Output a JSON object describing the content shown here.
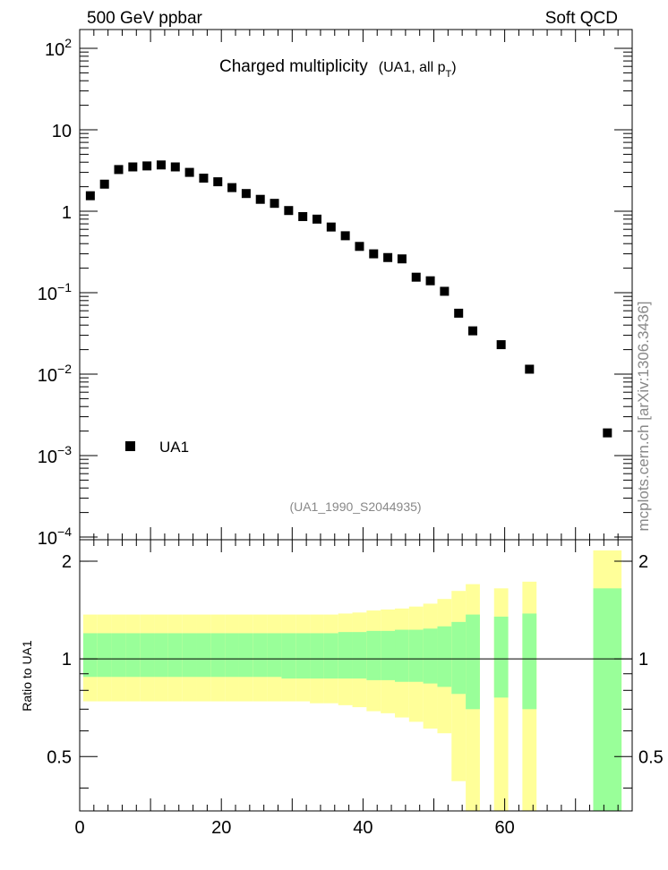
{
  "header": {
    "left": "500 GeV ppbar",
    "right": "Soft QCD"
  },
  "side_label": "mcplots.cern.ch [arXiv:1306.3436]",
  "chart_data": [
    {
      "type": "scatter",
      "title": "Charged multiplicity",
      "subtitle_prefix": "(UA1, all p",
      "subtitle_sub": "T",
      "subtitle_suffix": ")",
      "yscale": "log",
      "xlim": [
        0,
        78
      ],
      "ylim": [
        0.0001,
        200
      ],
      "y_ticks": [
        {
          "v": 100,
          "base": "10",
          "exp": "2"
        },
        {
          "v": 10,
          "base": "10",
          "exp": ""
        },
        {
          "v": 1,
          "base": "1",
          "exp": ""
        },
        {
          "v": 0.1,
          "base": "10",
          "exp": "−1"
        },
        {
          "v": 0.01,
          "base": "10",
          "exp": "−2"
        },
        {
          "v": 0.001,
          "base": "10",
          "exp": "−3"
        },
        {
          "v": 0.0001,
          "base": "10",
          "exp": "−4"
        }
      ],
      "legend": {
        "label": "UA1",
        "position": "lower-left"
      },
      "reference_text": "(UA1_1990_S2044935)",
      "series": [
        {
          "name": "UA1",
          "points": [
            [
              1.5,
              1.55
            ],
            [
              3.5,
              2.15
            ],
            [
              5.5,
              3.25
            ],
            [
              7.5,
              3.5
            ],
            [
              9.5,
              3.6
            ],
            [
              11.5,
              3.7
            ],
            [
              13.5,
              3.5
            ],
            [
              15.5,
              3.0
            ],
            [
              17.5,
              2.55
            ],
            [
              19.5,
              2.3
            ],
            [
              21.5,
              1.95
            ],
            [
              23.5,
              1.65
            ],
            [
              25.5,
              1.4
            ],
            [
              27.5,
              1.25
            ],
            [
              29.5,
              1.02
            ],
            [
              31.5,
              0.86
            ],
            [
              33.5,
              0.8
            ],
            [
              35.5,
              0.64
            ],
            [
              37.5,
              0.5
            ],
            [
              39.5,
              0.37
            ],
            [
              41.5,
              0.3
            ],
            [
              43.5,
              0.27
            ],
            [
              45.5,
              0.26
            ],
            [
              47.5,
              0.155
            ],
            [
              49.5,
              0.14
            ],
            [
              51.5,
              0.104
            ],
            [
              53.5,
              0.056
            ],
            [
              55.5,
              0.034
            ],
            [
              59.5,
              0.023
            ],
            [
              63.5,
              0.0115
            ],
            [
              74.5,
              0.0019
            ]
          ]
        }
      ]
    },
    {
      "type": "area",
      "ylabel": "Ratio to UA1",
      "xlim": [
        0,
        78
      ],
      "ylim": [
        0.34,
        2.33
      ],
      "x_ticks": [
        "0",
        "20",
        "40",
        "60"
      ],
      "y_ticks": [
        "0.5",
        "1",
        "2"
      ],
      "reference_line": 1,
      "colors": {
        "outer": "#ffff99",
        "inner": "#99ff99"
      },
      "bands": [
        {
          "x0": 0.5,
          "x1": 2.5,
          "lo_outer": 0.74,
          "lo_inner": 0.88,
          "hi_inner": 1.2,
          "hi_outer": 1.37
        },
        {
          "x0": 2.5,
          "x1": 4.5,
          "lo_outer": 0.74,
          "lo_inner": 0.88,
          "hi_inner": 1.2,
          "hi_outer": 1.37
        },
        {
          "x0": 4.5,
          "x1": 6.5,
          "lo_outer": 0.74,
          "lo_inner": 0.88,
          "hi_inner": 1.2,
          "hi_outer": 1.37
        },
        {
          "x0": 6.5,
          "x1": 8.5,
          "lo_outer": 0.74,
          "lo_inner": 0.88,
          "hi_inner": 1.2,
          "hi_outer": 1.37
        },
        {
          "x0": 8.5,
          "x1": 10.5,
          "lo_outer": 0.74,
          "lo_inner": 0.88,
          "hi_inner": 1.2,
          "hi_outer": 1.37
        },
        {
          "x0": 10.5,
          "x1": 12.5,
          "lo_outer": 0.74,
          "lo_inner": 0.88,
          "hi_inner": 1.2,
          "hi_outer": 1.37
        },
        {
          "x0": 12.5,
          "x1": 14.5,
          "lo_outer": 0.74,
          "lo_inner": 0.88,
          "hi_inner": 1.2,
          "hi_outer": 1.37
        },
        {
          "x0": 14.5,
          "x1": 16.5,
          "lo_outer": 0.74,
          "lo_inner": 0.88,
          "hi_inner": 1.2,
          "hi_outer": 1.37
        },
        {
          "x0": 16.5,
          "x1": 18.5,
          "lo_outer": 0.74,
          "lo_inner": 0.88,
          "hi_inner": 1.2,
          "hi_outer": 1.37
        },
        {
          "x0": 18.5,
          "x1": 20.5,
          "lo_outer": 0.74,
          "lo_inner": 0.88,
          "hi_inner": 1.2,
          "hi_outer": 1.37
        },
        {
          "x0": 20.5,
          "x1": 22.5,
          "lo_outer": 0.74,
          "lo_inner": 0.88,
          "hi_inner": 1.2,
          "hi_outer": 1.37
        },
        {
          "x0": 22.5,
          "x1": 24.5,
          "lo_outer": 0.74,
          "lo_inner": 0.88,
          "hi_inner": 1.2,
          "hi_outer": 1.37
        },
        {
          "x0": 24.5,
          "x1": 26.5,
          "lo_outer": 0.74,
          "lo_inner": 0.88,
          "hi_inner": 1.2,
          "hi_outer": 1.37
        },
        {
          "x0": 26.5,
          "x1": 28.5,
          "lo_outer": 0.74,
          "lo_inner": 0.88,
          "hi_inner": 1.2,
          "hi_outer": 1.37
        },
        {
          "x0": 28.5,
          "x1": 30.5,
          "lo_outer": 0.74,
          "lo_inner": 0.87,
          "hi_inner": 1.2,
          "hi_outer": 1.37
        },
        {
          "x0": 30.5,
          "x1": 32.5,
          "lo_outer": 0.74,
          "lo_inner": 0.87,
          "hi_inner": 1.2,
          "hi_outer": 1.37
        },
        {
          "x0": 32.5,
          "x1": 34.5,
          "lo_outer": 0.73,
          "lo_inner": 0.87,
          "hi_inner": 1.2,
          "hi_outer": 1.37
        },
        {
          "x0": 34.5,
          "x1": 36.5,
          "lo_outer": 0.73,
          "lo_inner": 0.87,
          "hi_inner": 1.2,
          "hi_outer": 1.37
        },
        {
          "x0": 36.5,
          "x1": 38.5,
          "lo_outer": 0.72,
          "lo_inner": 0.87,
          "hi_inner": 1.21,
          "hi_outer": 1.38
        },
        {
          "x0": 38.5,
          "x1": 40.5,
          "lo_outer": 0.71,
          "lo_inner": 0.87,
          "hi_inner": 1.21,
          "hi_outer": 1.39
        },
        {
          "x0": 40.5,
          "x1": 42.5,
          "lo_outer": 0.69,
          "lo_inner": 0.86,
          "hi_inner": 1.22,
          "hi_outer": 1.41
        },
        {
          "x0": 42.5,
          "x1": 44.5,
          "lo_outer": 0.68,
          "lo_inner": 0.86,
          "hi_inner": 1.22,
          "hi_outer": 1.42
        },
        {
          "x0": 44.5,
          "x1": 46.5,
          "lo_outer": 0.66,
          "lo_inner": 0.85,
          "hi_inner": 1.23,
          "hi_outer": 1.43
        },
        {
          "x0": 46.5,
          "x1": 48.5,
          "lo_outer": 0.64,
          "lo_inner": 0.85,
          "hi_inner": 1.23,
          "hi_outer": 1.45
        },
        {
          "x0": 48.5,
          "x1": 50.5,
          "lo_outer": 0.61,
          "lo_inner": 0.84,
          "hi_inner": 1.24,
          "hi_outer": 1.48
        },
        {
          "x0": 50.5,
          "x1": 52.5,
          "lo_outer": 0.59,
          "lo_inner": 0.82,
          "hi_inner": 1.26,
          "hi_outer": 1.53
        },
        {
          "x0": 52.5,
          "x1": 54.5,
          "lo_outer": 0.42,
          "lo_inner": 0.78,
          "hi_inner": 1.3,
          "hi_outer": 1.62
        },
        {
          "x0": 54.5,
          "x1": 56.5,
          "lo_outer": 0.34,
          "lo_inner": 0.7,
          "hi_inner": 1.37,
          "hi_outer": 1.7
        },
        {
          "x0": 58.5,
          "x1": 60.5,
          "lo_outer": 0.34,
          "lo_inner": 0.76,
          "hi_inner": 1.35,
          "hi_outer": 1.65
        },
        {
          "x0": 62.5,
          "x1": 64.5,
          "lo_outer": 0.34,
          "lo_inner": 0.7,
          "hi_inner": 1.38,
          "hi_outer": 1.73
        },
        {
          "x0": 72.5,
          "x1": 76.5,
          "lo_outer": 0.34,
          "lo_inner": 0.34,
          "hi_inner": 1.65,
          "hi_outer": 2.16
        }
      ]
    }
  ]
}
